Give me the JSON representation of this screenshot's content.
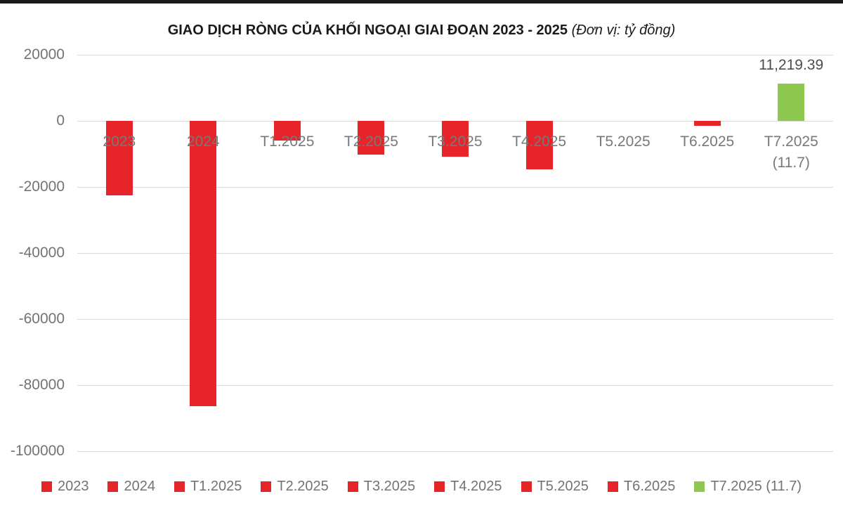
{
  "title": {
    "main": "GIAO DỊCH RÒNG CỦA KHỐI NGOẠI GIAI ĐOẠN 2023 - 2025",
    "unit": "(Đơn vị: tỷ đồng)"
  },
  "colors": {
    "negative_bar_red": "#e8242b",
    "positive_bar_green": "#8ec84f",
    "gridline_gray": "#dadada",
    "axis_text_gray": "#737373",
    "data_label_gray": "#4d4d4d",
    "title_black": "#1a1a1a"
  },
  "chart_data": {
    "type": "bar",
    "title": "GIAO DỊCH RÒNG CỦA KHỐI NGOẠI GIAI ĐOẠN 2023 - 2025",
    "subtitle": "(Đơn vị: tỷ đồng)",
    "xlabel": "",
    "ylabel": "",
    "ylim": [
      -100000,
      20000
    ],
    "grid": true,
    "legend_position": "bottom",
    "yticks": [
      {
        "label": "20000",
        "value": 20000
      },
      {
        "label": "0",
        "value": 0
      },
      {
        "label": "-20000",
        "value": -20000
      },
      {
        "label": "-40000",
        "value": -40000
      },
      {
        "label": "-60000",
        "value": -60000
      },
      {
        "label": "-80000",
        "value": -80000
      },
      {
        "label": "-100000",
        "value": -100000
      }
    ],
    "bars": [
      {
        "category": "2023",
        "sublabel": "",
        "value": -22600,
        "color": "#e8242b",
        "data_label": ""
      },
      {
        "category": "2024",
        "sublabel": "",
        "value": -86400,
        "color": "#e8242b",
        "data_label": ""
      },
      {
        "category": "T1.2025",
        "sublabel": "",
        "value": -6000,
        "color": "#e8242b",
        "data_label": ""
      },
      {
        "category": "T2.2025",
        "sublabel": "",
        "value": -10300,
        "color": "#e8242b",
        "data_label": ""
      },
      {
        "category": "T3.2025",
        "sublabel": "",
        "value": -10900,
        "color": "#e8242b",
        "data_label": ""
      },
      {
        "category": "T4.2025",
        "sublabel": "",
        "value": -14600,
        "color": "#e8242b",
        "data_label": ""
      },
      {
        "category": "T5.2025",
        "sublabel": "",
        "value": 0,
        "color": "#e8242b",
        "data_label": ""
      },
      {
        "category": "T6.2025",
        "sublabel": "",
        "value": -1500,
        "color": "#e8242b",
        "data_label": ""
      },
      {
        "category": "T7.2025",
        "sublabel": "(11.7)",
        "value": 11219.39,
        "color": "#8ec84f",
        "data_label": "11,219.39"
      }
    ],
    "legend": [
      {
        "label": "2023",
        "color": "#e8242b"
      },
      {
        "label": "2024",
        "color": "#e8242b"
      },
      {
        "label": "T1.2025",
        "color": "#e8242b"
      },
      {
        "label": "T2.2025",
        "color": "#e8242b"
      },
      {
        "label": "T3.2025",
        "color": "#e8242b"
      },
      {
        "label": "T4.2025",
        "color": "#e8242b"
      },
      {
        "label": "T5.2025",
        "color": "#e8242b"
      },
      {
        "label": "T6.2025",
        "color": "#e8242b"
      },
      {
        "label": "T7.2025 (11.7)",
        "color": "#8ec84f"
      }
    ]
  }
}
